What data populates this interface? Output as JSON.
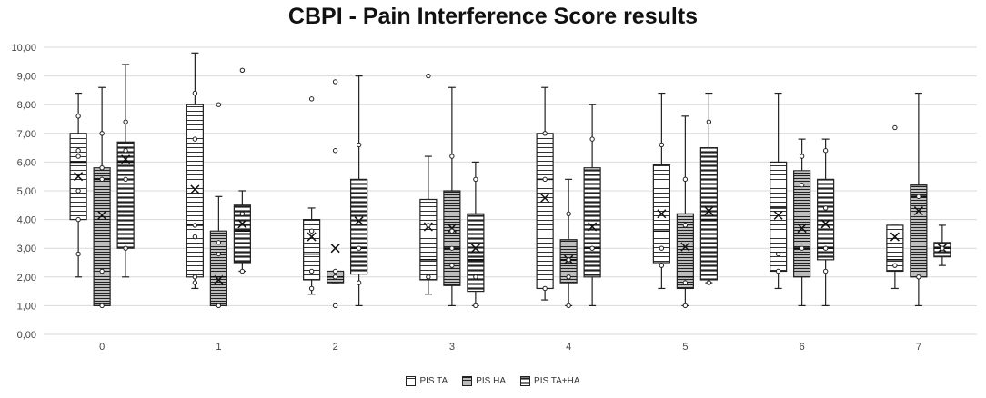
{
  "chart_data": {
    "type": "boxplot",
    "title": "CBPI - Pain Interference Score results",
    "xlabel": "",
    "ylabel": "",
    "categories": [
      "0",
      "1",
      "2",
      "3",
      "4",
      "5",
      "6",
      "7"
    ],
    "y_tick_labels": [
      "0,00",
      "1,00",
      "2,00",
      "3,00",
      "4,00",
      "5,00",
      "6,00",
      "7,00",
      "8,00",
      "9,00",
      "10,00"
    ],
    "ylim": [
      0,
      10
    ],
    "grid": true,
    "legend_position": "bottom",
    "series": [
      {
        "name": "PIS TA",
        "pattern": "horizontal-lines",
        "boxes": [
          {
            "min": 2.0,
            "q1": 4.0,
            "median": 6.0,
            "q3": 7.0,
            "max": 8.4,
            "mean": 5.5,
            "points": [
              2.8,
              4.0,
              5.0,
              6.2,
              6.4,
              7.6
            ]
          },
          {
            "min": 1.6,
            "q1": 2.0,
            "median": 3.8,
            "q3": 8.0,
            "max": 9.8,
            "mean": 5.05,
            "points": [
              1.8,
              2.0,
              3.4,
              3.8,
              6.8,
              8.4
            ]
          },
          {
            "min": 1.4,
            "q1": 1.9,
            "median": 2.8,
            "q3": 4.0,
            "max": 4.4,
            "mean": 3.4,
            "points": [
              1.6,
              2.2,
              3.6,
              8.2
            ]
          },
          {
            "min": 1.4,
            "q1": 1.9,
            "median": 2.6,
            "q3": 4.7,
            "max": 6.2,
            "mean": 3.75,
            "points": [
              2.0,
              3.8,
              9.0
            ]
          },
          {
            "min": 1.2,
            "q1": 1.6,
            "median": 5.4,
            "q3": 7.0,
            "max": 8.6,
            "mean": 4.75,
            "points": [
              1.6,
              5.4,
              7.0
            ]
          },
          {
            "min": 1.6,
            "q1": 2.5,
            "median": 3.6,
            "q3": 5.9,
            "max": 8.4,
            "mean": 4.2,
            "points": [
              2.4,
              3.0,
              6.6
            ]
          },
          {
            "min": 1.6,
            "q1": 2.2,
            "median": 4.4,
            "q3": 6.0,
            "max": 8.4,
            "mean": 4.15,
            "points": [
              2.2,
              2.8
            ]
          },
          {
            "min": 1.6,
            "q1": 2.2,
            "median": 2.6,
            "q3": 3.8,
            "max": 3.8,
            "mean": 3.4,
            "points": [
              2.4,
              7.2
            ]
          }
        ]
      },
      {
        "name": "PIS HA",
        "pattern": "dense-lines",
        "boxes": [
          {
            "min": 1.0,
            "q1": 1.0,
            "median": 5.4,
            "q3": 5.8,
            "max": 8.6,
            "mean": 4.15,
            "points": [
              1.0,
              2.2,
              5.4,
              5.8,
              7.0
            ]
          },
          {
            "min": 1.0,
            "q1": 1.0,
            "median": 2.0,
            "q3": 3.6,
            "max": 4.8,
            "mean": 1.9,
            "points": [
              1.0,
              2.8,
              3.2,
              8.0
            ]
          },
          {
            "min": 1.8,
            "q1": 1.8,
            "median": 2.0,
            "q3": 2.2,
            "max": 2.2,
            "mean": 3.0,
            "points": [
              1.0,
              2.0,
              2.2,
              6.4,
              8.8
            ]
          },
          {
            "min": 1.0,
            "q1": 1.7,
            "median": 3.0,
            "q3": 5.0,
            "max": 8.6,
            "mean": 3.7,
            "points": [
              2.4,
              3.0,
              3.6,
              6.2
            ]
          },
          {
            "min": 1.0,
            "q1": 1.8,
            "median": 2.6,
            "q3": 3.3,
            "max": 5.4,
            "mean": 2.6,
            "points": [
              1.0,
              2.0,
              2.6,
              4.2
            ]
          },
          {
            "min": 1.0,
            "q1": 1.6,
            "median": 2.0,
            "q3": 4.2,
            "max": 7.6,
            "mean": 3.05,
            "points": [
              1.0,
              1.8,
              3.8,
              5.4
            ]
          },
          {
            "min": 1.0,
            "q1": 2.0,
            "median": 3.0,
            "q3": 5.7,
            "max": 6.8,
            "mean": 3.7,
            "points": [
              3.0,
              5.2,
              6.2
            ]
          },
          {
            "min": 1.0,
            "q1": 2.0,
            "median": 4.8,
            "q3": 5.2,
            "max": 8.4,
            "mean": 4.3,
            "points": [
              2.0,
              4.8
            ]
          }
        ]
      },
      {
        "name": "PIS TA+HA",
        "pattern": "thick-lines",
        "boxes": [
          {
            "min": 2.0,
            "q1": 3.0,
            "median": 6.0,
            "q3": 6.7,
            "max": 9.4,
            "mean": 6.1,
            "points": [
              3.0,
              5.4,
              6.4,
              7.4
            ]
          },
          {
            "min": 2.2,
            "q1": 2.5,
            "median": 3.6,
            "q3": 4.5,
            "max": 5.0,
            "mean": 3.85,
            "points": [
              2.2,
              4.2,
              9.2
            ]
          },
          {
            "min": 1.0,
            "q1": 2.1,
            "median": 3.0,
            "q3": 5.4,
            "max": 9.0,
            "mean": 3.95,
            "points": [
              1.8,
              3.0,
              6.6
            ]
          },
          {
            "min": 1.0,
            "q1": 1.5,
            "median": 2.6,
            "q3": 4.2,
            "max": 6.0,
            "mean": 3.0,
            "points": [
              1.0,
              2.0,
              5.4
            ]
          },
          {
            "min": 1.0,
            "q1": 2.0,
            "median": 3.0,
            "q3": 5.8,
            "max": 8.0,
            "mean": 3.75,
            "points": [
              3.0,
              6.8
            ]
          },
          {
            "min": 1.8,
            "q1": 1.9,
            "median": 4.0,
            "q3": 6.5,
            "max": 8.4,
            "mean": 4.3,
            "points": [
              1.8,
              7.4
            ]
          },
          {
            "min": 1.0,
            "q1": 2.6,
            "median": 3.0,
            "q3": 5.4,
            "max": 6.8,
            "mean": 3.85,
            "points": [
              2.2,
              3.0,
              4.4,
              6.4
            ]
          },
          {
            "min": 2.4,
            "q1": 2.7,
            "median": 3.0,
            "q3": 3.2,
            "max": 3.8,
            "mean": 3.0,
            "points": [
              3.0
            ]
          }
        ]
      }
    ]
  }
}
